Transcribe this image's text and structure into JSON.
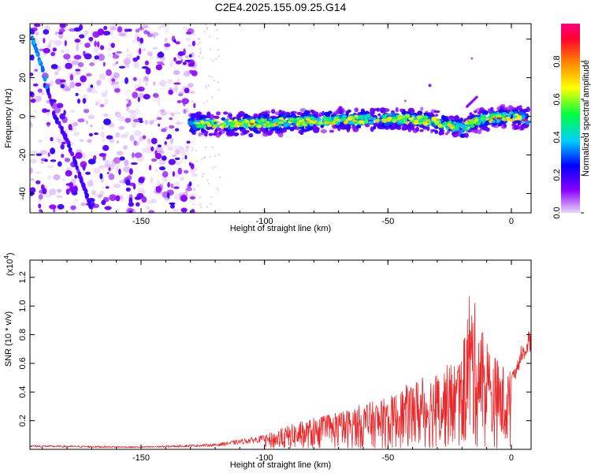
{
  "title": "C2E4.2025.155.09.25.G14",
  "chart_data": [
    {
      "type": "heatmap",
      "xlabel": "Height of straight line (km)",
      "ylabel": "Frequency (Hz)",
      "xlim": [
        -195,
        8
      ],
      "ylim": [
        -50,
        48
      ],
      "xticks": [
        -150,
        -100,
        -50,
        0
      ],
      "yticks": [
        -40,
        -20,
        0,
        20,
        40
      ],
      "colorbar": {
        "label": "Normalized spectral amplitude",
        "range": [
          0,
          1
        ],
        "ticks": [
          0.0,
          0.2,
          0.4,
          0.6,
          0.8
        ],
        "tick_labels": [
          "0.0",
          "0.2",
          "0.4",
          "0.6",
          "0.8"
        ],
        "colors": [
          "#e8d8f8",
          "#8a00ff",
          "#0000ff",
          "#00d0ff",
          "#00ff40",
          "#ffff00",
          "#ff8000",
          "#ff0030",
          "#ff0080"
        ]
      },
      "ridge": {
        "x": [
          -130,
          -110,
          -90,
          -70,
          -50,
          -35,
          -20,
          -15,
          -10,
          0,
          7
        ],
        "y": [
          -4,
          -4,
          -3,
          -2,
          -1,
          -2,
          -6,
          -3,
          -1,
          0,
          -2
        ]
      },
      "branch": {
        "x": [
          -195,
          -190,
          -185,
          -180,
          -175,
          -170
        ],
        "y": [
          44,
          25,
          0,
          -12,
          -30,
          -48
        ]
      }
    },
    {
      "type": "line",
      "xlabel": "Height of straight line (km)",
      "ylabel": "SNR (10 * v/v)",
      "yexponent": "(x10",
      "yexponent_power": "4",
      "yexponent_close": ")",
      "xlim": [
        -195,
        8
      ],
      "ylim": [
        0,
        1.32
      ],
      "xticks": [
        -150,
        -100,
        -50,
        0
      ],
      "yticks": [
        0.2,
        0.4,
        0.6,
        0.8,
        1.0,
        1.2
      ],
      "ytick_labels": [
        "0.2",
        "0.4",
        "0.6",
        "0.8",
        "1.0",
        "1.2"
      ],
      "color": "#e8282a",
      "envelope": {
        "x": [
          -195,
          -150,
          -120,
          -100,
          -90,
          -80,
          -70,
          -60,
          -50,
          -40,
          -30,
          -20,
          -17,
          -10,
          -5,
          0,
          5,
          8
        ],
        "y": [
          0.03,
          0.02,
          0.04,
          0.1,
          0.17,
          0.22,
          0.26,
          0.32,
          0.36,
          0.48,
          0.55,
          0.65,
          1.15,
          0.75,
          0.62,
          0.55,
          0.78,
          0.88
        ]
      }
    }
  ]
}
